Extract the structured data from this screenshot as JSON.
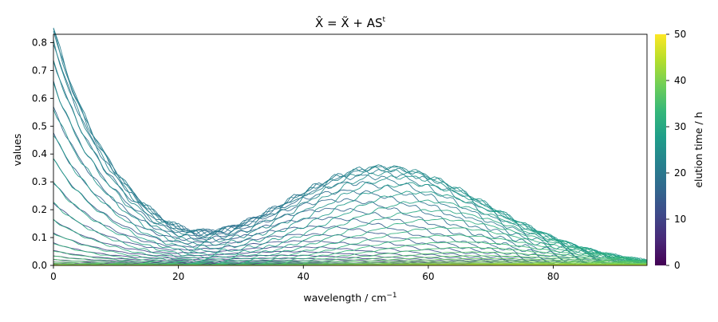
{
  "chart_data": {
    "type": "line",
    "title": "X̂ = X̃ + AS",
    "title_superscript": "t",
    "xlabel": "wavelength / cm",
    "xlabel_superscript": "−1",
    "ylabel": "values",
    "xlim": [
      0,
      95
    ],
    "ylim": [
      0,
      0.83
    ],
    "xticks": [
      0,
      20,
      40,
      60,
      80
    ],
    "xtick_labels": [
      "0",
      "20",
      "40",
      "60",
      "80"
    ],
    "yticks": [
      0.0,
      0.1,
      0.2,
      0.3,
      0.4,
      0.5,
      0.6,
      0.7,
      0.8
    ],
    "ytick_labels": [
      "0.0",
      "0.1",
      "0.2",
      "0.3",
      "0.4",
      "0.5",
      "0.6",
      "0.7",
      "0.8"
    ],
    "grid": false,
    "colormap": "viridis",
    "colorbar": {
      "label": "elution time / h",
      "range": [
        0,
        50
      ],
      "ticks": [
        0,
        10,
        20,
        30,
        40,
        50
      ],
      "tick_labels": [
        "0",
        "10",
        "20",
        "30",
        "40",
        "50"
      ]
    },
    "series_count": 51,
    "series_param": "elution time / h, 0 to 50",
    "components": {
      "decay": {
        "x0": 0,
        "peak": 0.83,
        "decay_length": 9.5,
        "shoulder_center": 8,
        "shoulder_width": 10,
        "shoulder_height": 0.05
      },
      "gaussian": {
        "center": 50,
        "width": 13,
        "peak": 0.33,
        "tail_center": 68,
        "tail_width": 12,
        "tail_height": 0.08
      }
    },
    "samples": [
      {
        "time": 22,
        "x": [
          0,
          10,
          20,
          25,
          30,
          40,
          50,
          60,
          70,
          80,
          95
        ],
        "y": [
          0.83,
          0.41,
          0.19,
          0.14,
          0.16,
          0.27,
          0.33,
          0.29,
          0.22,
          0.1,
          0.01
        ]
      }
    ],
    "line_width": 0.9
  }
}
